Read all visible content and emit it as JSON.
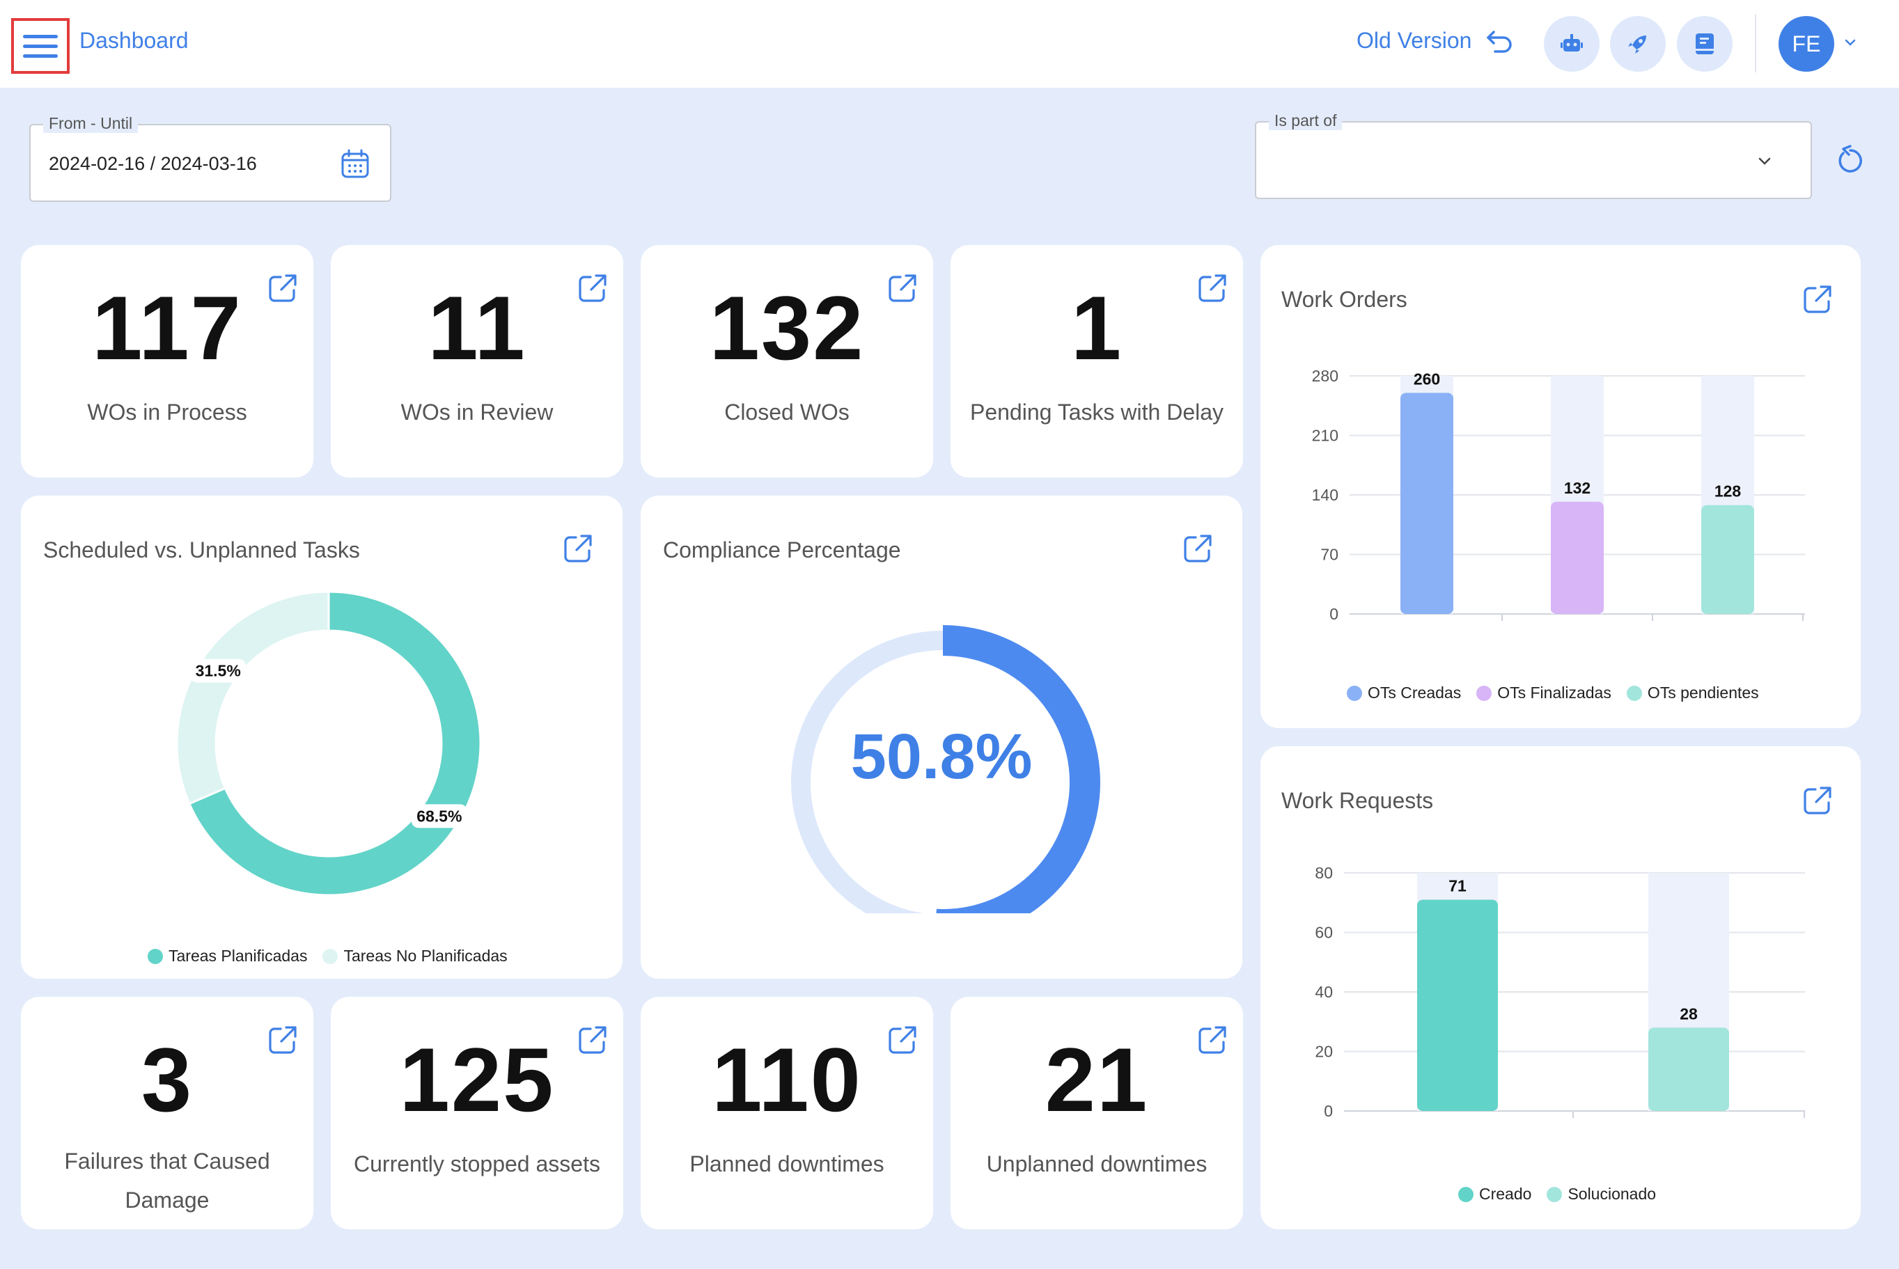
{
  "header": {
    "title": "Dashboard",
    "old_version": "Old Version",
    "avatar_initials": "FE",
    "icons": [
      "menu-icon",
      "undo-arrow-icon",
      "robot-icon",
      "rocket-icon",
      "book-icon",
      "chevron-down-icon"
    ]
  },
  "filters": {
    "date_label": "From - Until",
    "date_value": "2024-02-16 / 2024-03-16",
    "part_label": "Is part of",
    "part_value": ""
  },
  "kpis": [
    {
      "value": "117",
      "label": "WOs in Process"
    },
    {
      "value": "11",
      "label": "WOs in Review"
    },
    {
      "value": "132",
      "label": "Closed WOs"
    },
    {
      "value": "1",
      "label": "Pending Tasks with Delay"
    },
    {
      "value": "3",
      "label_line1": "Failures that Caused",
      "label_line2": "Damage"
    },
    {
      "value": "125",
      "label": "Currently stopped assets"
    },
    {
      "value": "110",
      "label": "Planned downtimes"
    },
    {
      "value": "21",
      "label": "Unplanned downtimes"
    }
  ],
  "compliance": {
    "title": "Compliance Percentage",
    "value_text": "50.8%",
    "value": 50.8,
    "color": "#4d8af0",
    "track_color": "#dde8fb"
  },
  "chart_data": [
    {
      "type": "pie",
      "title": "Scheduled vs. Unplanned Tasks",
      "donut": true,
      "series": [
        {
          "name": "Tareas Planificadas",
          "value": 68.5,
          "label": "68.5%",
          "color": "#62d3c8"
        },
        {
          "name": "Tareas No Planificadas",
          "value": 31.5,
          "label": "31.5%",
          "color": "#ddf4f2"
        }
      ],
      "legend": "bottom"
    },
    {
      "type": "bar",
      "title": "Work Orders",
      "categories": [
        "OTs Creadas",
        "OTs Finalizadas",
        "OTs pendientes"
      ],
      "values": [
        260,
        132,
        128
      ],
      "colors": [
        "#8ab1f5",
        "#d7b5f7",
        "#a2e5dd"
      ],
      "yticks": [
        "280",
        "210",
        "140",
        "70",
        "0"
      ],
      "ylim": [
        0,
        280
      ],
      "grid": true,
      "legend": "bottom"
    },
    {
      "type": "bar",
      "title": "Work Requests",
      "categories": [
        "Creado",
        "Solucionado"
      ],
      "values": [
        71,
        28
      ],
      "colors": [
        "#62d3c8",
        "#a2e5dd"
      ],
      "yticks": [
        "80",
        "60",
        "40",
        "20",
        "0"
      ],
      "ylim": [
        0,
        80
      ],
      "grid": true,
      "legend": "bottom"
    }
  ]
}
